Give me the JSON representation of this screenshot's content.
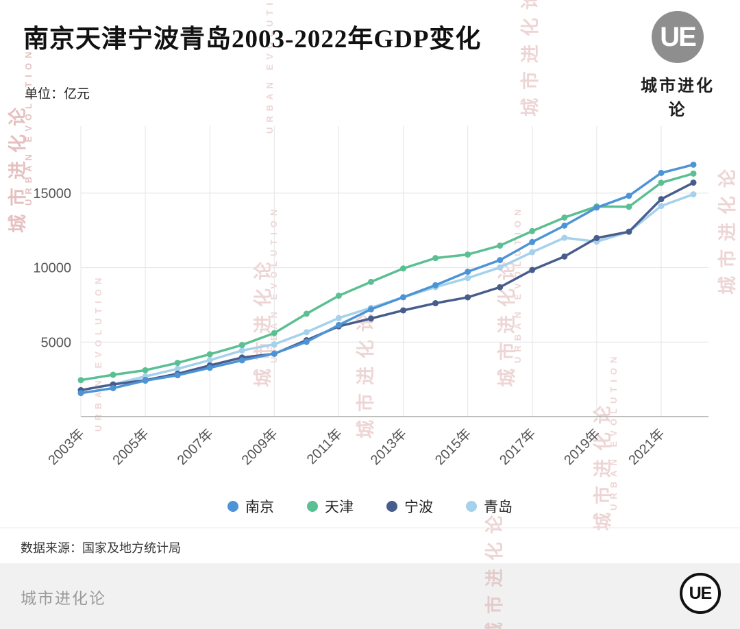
{
  "header": {
    "title": "南京天津宁波青岛2003-2022年GDP变化"
  },
  "brand": {
    "logo_text": "UE",
    "name": "城市进化论"
  },
  "chart": {
    "unit_label": "单位：亿元"
  },
  "chart_data": {
    "type": "line",
    "title": "南京天津宁波青岛2003-2022年GDP变化",
    "xlabel": "",
    "ylabel": "亿元",
    "x": [
      2003,
      2004,
      2005,
      2006,
      2007,
      2008,
      2009,
      2010,
      2011,
      2012,
      2013,
      2014,
      2015,
      2016,
      2017,
      2018,
      2019,
      2020,
      2021,
      2022
    ],
    "x_tick_labels": [
      "2003年",
      "2005年",
      "2007年",
      "2009年",
      "2011年",
      "2013年",
      "2015年",
      "2017年",
      "2019年",
      "2021年"
    ],
    "y_ticks": [
      5000,
      10000,
      15000
    ],
    "ylim": [
      0,
      19500
    ],
    "grid": true,
    "legend_position": "bottom",
    "series": [
      {
        "name": "南京",
        "color": "#4d94d6",
        "values": [
          1576,
          1910,
          2411,
          2774,
          3275,
          3775,
          4230,
          5013,
          6146,
          7202,
          8012,
          8821,
          9721,
          10503,
          11715,
          12820,
          14030,
          14818,
          16355,
          16908
        ]
      },
      {
        "name": "天津",
        "color": "#5abf92",
        "values": [
          2448,
          2806,
          3111,
          3605,
          4183,
          4804,
          5607,
          6902,
          8112,
          9043,
          9945,
          10640,
          10879,
          11477,
          12450,
          13362,
          14104,
          14084,
          15695,
          16311
        ]
      },
      {
        "name": "宁波",
        "color": "#475d8c",
        "values": [
          1770,
          2158,
          2446,
          2874,
          3433,
          3964,
          4215,
          5126,
          6059,
          6582,
          7129,
          7610,
          8004,
          8686,
          9842,
          10746,
          11985,
          12409,
          14595,
          15704
        ]
      },
      {
        "name": "青岛",
        "color": "#a5d1ec",
        "values": [
          1780,
          2164,
          2696,
          3207,
          3787,
          4436,
          4854,
          5666,
          6616,
          7302,
          8007,
          8692,
          9300,
          10011,
          11037,
          12002,
          11741,
          12400,
          14136,
          14921
        ]
      }
    ]
  },
  "source": {
    "text": "数据来源：国家及地方统计局"
  },
  "footer": {
    "brand": "城市进化论",
    "logo_text": "UE"
  },
  "watermark": {
    "zh": "城市进化论",
    "en": "URBAN EVOLUTION"
  }
}
